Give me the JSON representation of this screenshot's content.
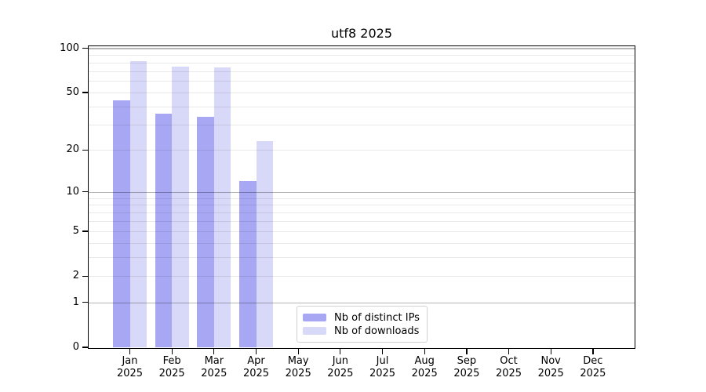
{
  "figure": {
    "background": "#ffffff",
    "kind": "bar-chart-figure"
  },
  "chart_data": {
    "type": "bar",
    "title": "utf8 2025",
    "categories": [
      "Jan",
      "Feb",
      "Mar",
      "Apr",
      "May",
      "Jun",
      "Jul",
      "Aug",
      "Sep",
      "Oct",
      "Nov",
      "Dec"
    ],
    "x_year": "2025",
    "series": [
      {
        "name": "Nb of distinct IPs",
        "color": "#a7a7f3",
        "values": [
          44,
          36,
          34,
          12,
          0,
          0,
          0,
          0,
          0,
          0,
          0,
          0
        ]
      },
      {
        "name": "Nb of downloads",
        "color": "#d8d8f8",
        "values": [
          82,
          75,
          74,
          23,
          0,
          0,
          0,
          0,
          0,
          0,
          0,
          0
        ]
      }
    ],
    "y_scale": "log1p",
    "ylim": [
      0,
      110
    ],
    "y_ticks": [
      0,
      1,
      2,
      5,
      10,
      20,
      50,
      100
    ],
    "y_tick_labels": [
      "0",
      "1",
      "2",
      "5",
      "10",
      "20",
      "50",
      "100"
    ],
    "y_major_gridlines": [
      1,
      10,
      100
    ],
    "y_minor_gridlines": [
      2,
      3,
      4,
      5,
      6,
      7,
      8,
      9,
      20,
      30,
      40,
      50,
      60,
      70,
      80,
      90
    ],
    "grid": "on",
    "legend_position": "bottom-center",
    "bar_grouping": "paired-adjacent"
  },
  "legend": {
    "items": [
      {
        "label": "Nb of distinct IPs",
        "color": "#a7a7f3"
      },
      {
        "label": "Nb of downloads",
        "color": "#d8d8f8"
      }
    ]
  }
}
